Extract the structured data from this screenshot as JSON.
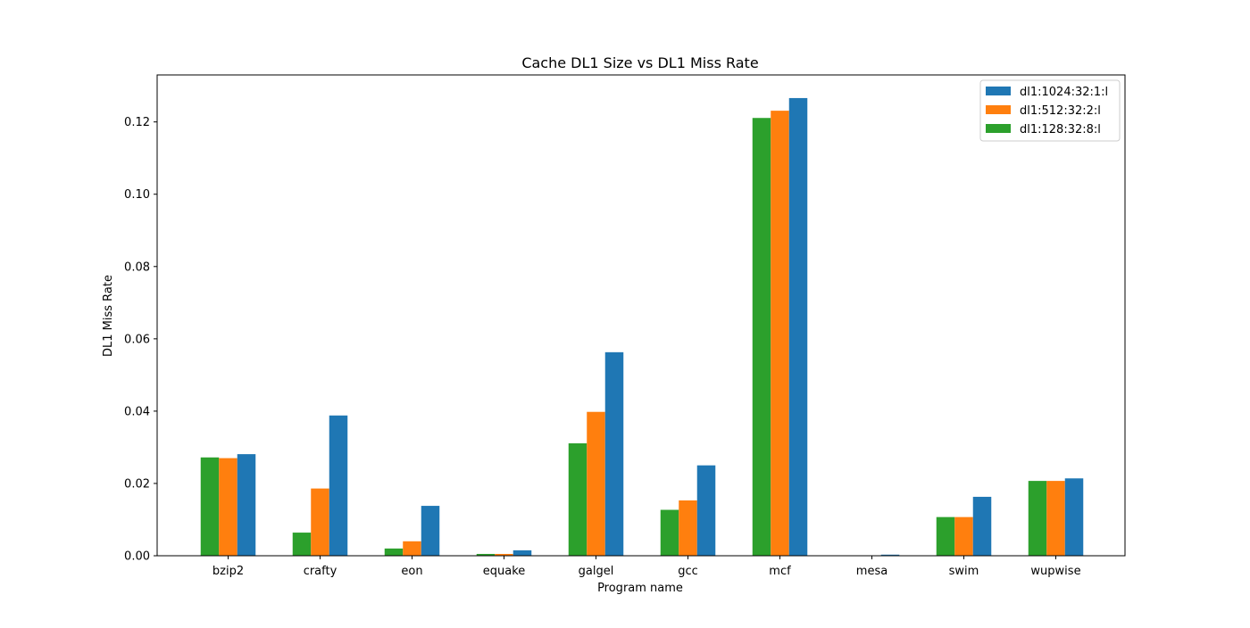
{
  "chart_data": {
    "type": "bar",
    "title": "Cache DL1 Size vs DL1 Miss Rate",
    "xlabel": "Program name",
    "ylabel": "DL1 Miss Rate",
    "categories": [
      "bzip2",
      "crafty",
      "eon",
      "equake",
      "galgel",
      "gcc",
      "mcf",
      "mesa",
      "swim",
      "wupwise"
    ],
    "ylim": [
      0,
      0.133
    ],
    "yticks": [
      0.0,
      0.02,
      0.04,
      0.06,
      0.08,
      0.1,
      0.12
    ],
    "ytick_labels": [
      "0.00",
      "0.02",
      "0.04",
      "0.06",
      "0.08",
      "0.10",
      "0.12"
    ],
    "series": [
      {
        "name": "dl1:128:32:8:l",
        "color": "#2ca02c",
        "values": [
          0.0272,
          0.0064,
          0.002,
          0.0005,
          0.0311,
          0.0127,
          0.1211,
          0.0,
          0.0107,
          0.0207
        ]
      },
      {
        "name": "dl1:512:32:2:l",
        "color": "#ff7f0e",
        "values": [
          0.027,
          0.0186,
          0.004,
          0.0005,
          0.0398,
          0.0153,
          0.1231,
          0.0,
          0.0107,
          0.0207
        ]
      },
      {
        "name": "dl1:1024:32:1:l",
        "color": "#1f77b4",
        "values": [
          0.0281,
          0.0388,
          0.0138,
          0.0015,
          0.0563,
          0.025,
          0.1266,
          0.0003,
          0.0163,
          0.0214
        ]
      }
    ],
    "legend": {
      "position": "upper right",
      "order": [
        "dl1:1024:32:1:l",
        "dl1:512:32:2:l",
        "dl1:128:32:8:l"
      ]
    },
    "grid": false
  }
}
